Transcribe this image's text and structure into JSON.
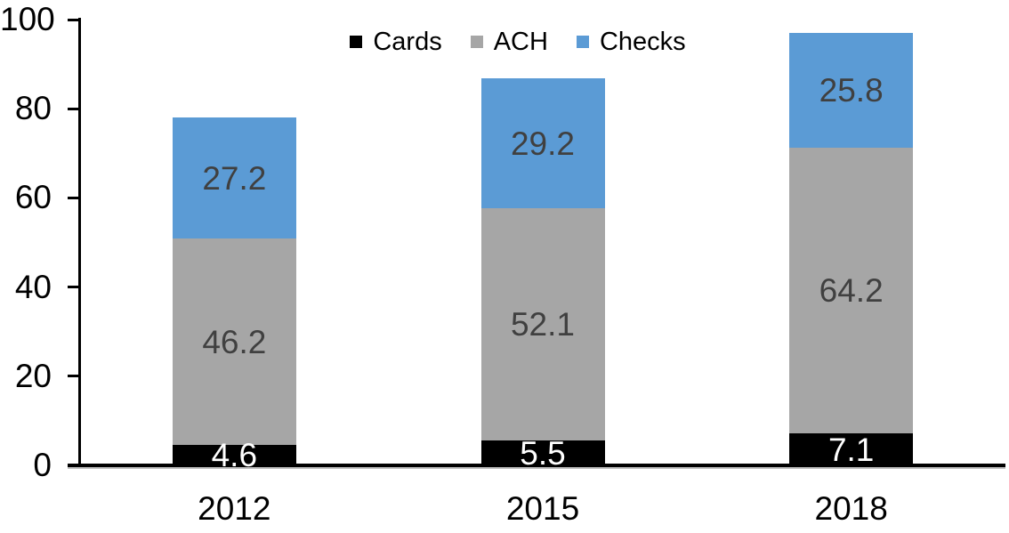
{
  "page": {
    "background": "#ffffff"
  },
  "chart_data": {
    "type": "bar",
    "stacked": true,
    "title": "",
    "xlabel": "",
    "ylabel": "",
    "categories": [
      "2012",
      "2015",
      "2018"
    ],
    "series": [
      {
        "name": "Cards",
        "color": "#000000",
        "label_color": "#ffffff",
        "values": [
          4.6,
          5.5,
          7.1
        ]
      },
      {
        "name": "ACH",
        "color": "#A6A6A6",
        "label_color": "#404040",
        "values": [
          46.2,
          52.1,
          64.2
        ]
      },
      {
        "name": "Checks",
        "color": "#5B9BD5",
        "label_color": "#404040",
        "values": [
          27.2,
          29.2,
          25.8
        ]
      }
    ],
    "totals": [
      78.0,
      86.8,
      97.1
    ],
    "ylim": [
      0,
      100
    ],
    "yticks": [
      0,
      20,
      40,
      60,
      80,
      100
    ],
    "grid": false,
    "legend_position": "top-center",
    "legend_labels": [
      "Cards",
      "ACH",
      "Checks"
    ],
    "axis_color": "#000000",
    "tick_label_color": "#000000",
    "data_labels_shown": true
  }
}
